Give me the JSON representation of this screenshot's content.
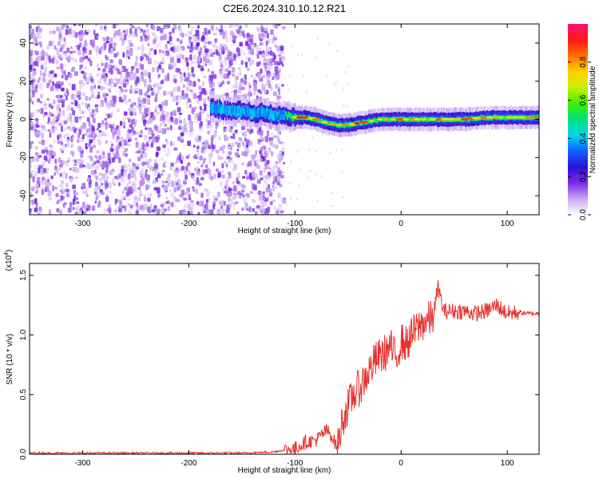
{
  "title": "C2E6.2024.310.10.12.R21",
  "chart_data": [
    {
      "type": "heatmap",
      "xlabel": "Height of straight line (km)",
      "ylabel": "Frequency (Hz)",
      "xlim": [
        -350,
        130
      ],
      "ylim": [
        -50,
        50
      ],
      "x_ticks": [
        -300,
        -200,
        -100,
        0,
        100
      ],
      "y_ticks": [
        -40,
        -20,
        0,
        20,
        40
      ],
      "colorbar": {
        "label": "Normalized spectral amplitude",
        "ticks": [
          "0.0",
          "0.2",
          "0.4",
          "0.6",
          "0.8"
        ],
        "range": [
          0,
          1
        ],
        "colormap": [
          "#ffffff",
          "#c8a8f0",
          "#7a28e8",
          "#2a12d8",
          "#1060ff",
          "#00d8e8",
          "#00e080",
          "#40ee00",
          "#c8f000",
          "#ffd000",
          "#ff7000",
          "#ff1818",
          "#ff1070"
        ]
      },
      "noise_region_x": [
        -350,
        -110
      ],
      "carrier_trace": [
        {
          "x": -180,
          "y": 6
        },
        {
          "x": -170,
          "y": 5
        },
        {
          "x": -160,
          "y": 4
        },
        {
          "x": -150,
          "y": 5
        },
        {
          "x": -140,
          "y": 3
        },
        {
          "x": -130,
          "y": 4
        },
        {
          "x": -120,
          "y": 2
        },
        {
          "x": -110,
          "y": 2
        },
        {
          "x": -100,
          "y": 1
        },
        {
          "x": -90,
          "y": 1
        },
        {
          "x": -80,
          "y": 0
        },
        {
          "x": -70,
          "y": -2
        },
        {
          "x": -60,
          "y": -3
        },
        {
          "x": -50,
          "y": -3
        },
        {
          "x": -40,
          "y": -2
        },
        {
          "x": -30,
          "y": -1
        },
        {
          "x": -20,
          "y": 0
        },
        {
          "x": -10,
          "y": 0
        },
        {
          "x": 0,
          "y": 0
        },
        {
          "x": 10,
          "y": 0
        },
        {
          "x": 20,
          "y": 0
        },
        {
          "x": 40,
          "y": 0
        },
        {
          "x": 60,
          "y": 0
        },
        {
          "x": 80,
          "y": 1
        },
        {
          "x": 100,
          "y": 1
        },
        {
          "x": 130,
          "y": 1
        }
      ]
    },
    {
      "type": "line",
      "xlabel": "Height of straight line (km)",
      "ylabel": "SNR (10 * v/v)",
      "y_multiplier": "(x10",
      "y_multiplier_exp": "4",
      "y_multiplier_close": ")",
      "xlim": [
        -350,
        130
      ],
      "ylim": [
        0,
        1.6
      ],
      "x_ticks": [
        -300,
        -200,
        -100,
        0,
        100
      ],
      "y_ticks": [
        "0.0",
        "0.5",
        "1.0",
        "1.5"
      ],
      "series": [
        {
          "color": "#e8302a",
          "x": [
            -350,
            -300,
            -250,
            -200,
            -150,
            -120,
            -100,
            -90,
            -80,
            -70,
            -65,
            -60,
            -55,
            -50,
            -45,
            -40,
            -35,
            -30,
            -25,
            -20,
            -15,
            -10,
            -5,
            0,
            5,
            10,
            15,
            20,
            25,
            30,
            35,
            40,
            50,
            60,
            70,
            80,
            90,
            100,
            110,
            120,
            130
          ],
          "y": [
            0.01,
            0.01,
            0.01,
            0.01,
            0.01,
            0.02,
            0.05,
            0.1,
            0.12,
            0.2,
            0.15,
            0.05,
            0.3,
            0.4,
            0.5,
            0.55,
            0.62,
            0.7,
            0.78,
            0.82,
            0.85,
            0.9,
            0.8,
            0.95,
            0.92,
            1.0,
            1.05,
            1.1,
            1.12,
            1.15,
            1.4,
            1.2,
            1.2,
            1.2,
            1.18,
            1.2,
            1.25,
            1.18,
            1.19,
            1.18,
            1.18
          ]
        }
      ]
    }
  ]
}
